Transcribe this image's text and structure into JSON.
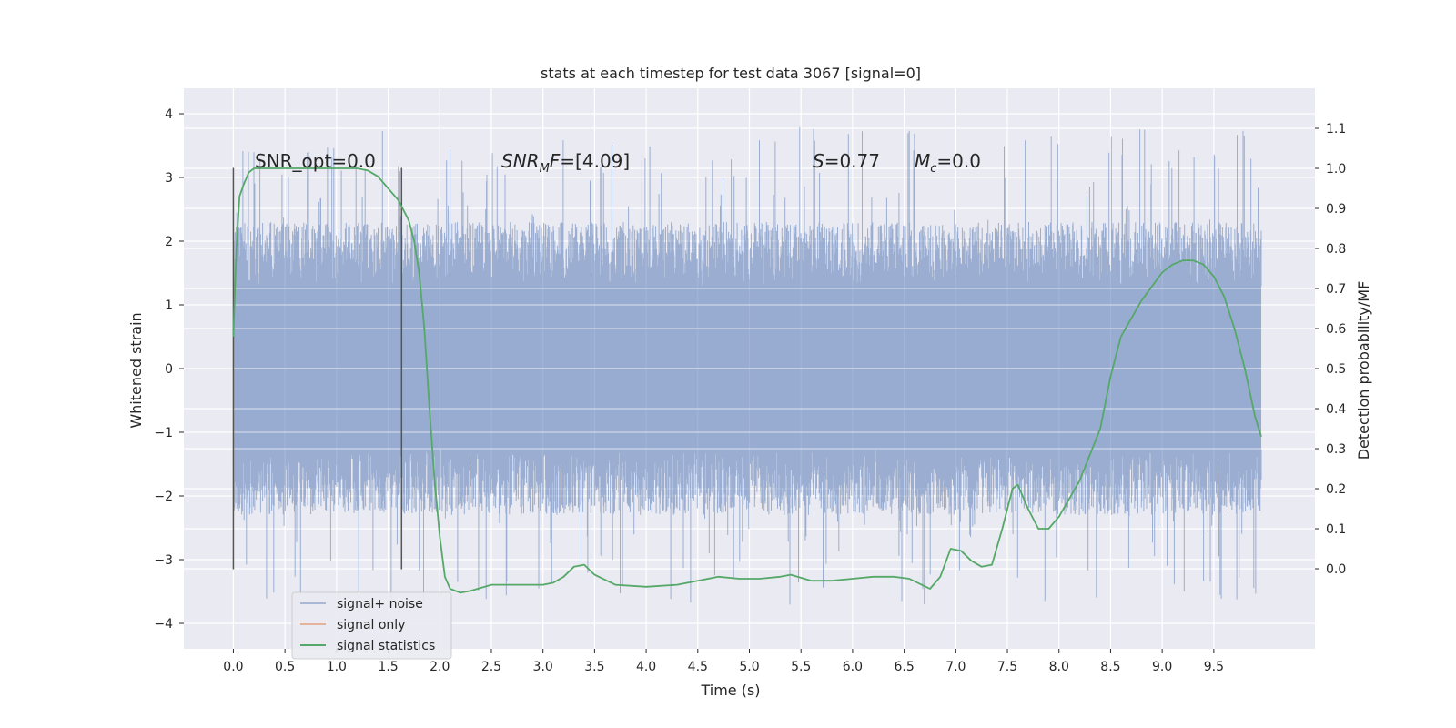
{
  "chart_data": {
    "type": "line",
    "title": "stats at each timestep for test data 3067 [signal=0]",
    "xlabel": "Time (s)",
    "ylabel_left": "Whitened strain",
    "ylabel_right": "Detection probability/MF",
    "xlim": [
      -0.48,
      10.48
    ],
    "ylim_left": [
      -4.4,
      4.4
    ],
    "ylim_right": [
      -0.2,
      1.2
    ],
    "x_ticks": [
      "0.0",
      "0.5",
      "1.0",
      "1.5",
      "2.0",
      "2.5",
      "3.0",
      "3.5",
      "4.0",
      "4.5",
      "5.0",
      "5.5",
      "6.0",
      "6.5",
      "7.0",
      "7.5",
      "8.0",
      "8.5",
      "9.0",
      "9.5"
    ],
    "y_left_ticks": [
      "4",
      "3",
      "2",
      "1",
      "0",
      "−1",
      "−2",
      "−3",
      "−4"
    ],
    "y_right_ticks": [
      "1.1",
      "1.0",
      "0.9",
      "0.8",
      "0.7",
      "0.6",
      "0.5",
      "0.4",
      "0.3",
      "0.2",
      "0.1",
      "0.0"
    ],
    "grid": true,
    "legend_position": "bottom-left",
    "colors": {
      "noise": "#4c72b0",
      "signal": "#dd8452",
      "stat": "#55a868",
      "background": "#eaeaf2",
      "markers": "#555555"
    },
    "noise": {
      "x_range": [
        0.0,
        9.96
      ],
      "core_band": [
        -1.27,
        1.3
      ],
      "typical_peak_range": [
        -2.3,
        2.3
      ],
      "extreme_range": [
        -4.0,
        4.05
      ]
    },
    "vertical_markers": [
      0.0,
      1.63
    ],
    "vertical_marker_range": [
      -3.15,
      3.15
    ],
    "series": [
      {
        "name": "signal+ noise",
        "axis": "left",
        "color": "#4c72b0"
      },
      {
        "name": "signal only",
        "axis": "left",
        "color": "#dd8452",
        "values": []
      },
      {
        "name": "signal statistics",
        "axis": "right",
        "color": "#55a868",
        "x": [
          0.0,
          0.03,
          0.06,
          0.1,
          0.15,
          0.2,
          0.3,
          0.5,
          0.8,
          1.0,
          1.2,
          1.3,
          1.4,
          1.5,
          1.6,
          1.7,
          1.75,
          1.8,
          1.85,
          1.9,
          1.95,
          2.0,
          2.05,
          2.1,
          2.2,
          2.3,
          2.5,
          2.8,
          3.0,
          3.1,
          3.2,
          3.3,
          3.4,
          3.5,
          3.7,
          4.0,
          4.3,
          4.5,
          4.7,
          4.9,
          5.1,
          5.3,
          5.4,
          5.6,
          5.8,
          6.0,
          6.2,
          6.4,
          6.55,
          6.75,
          6.85,
          6.95,
          7.05,
          7.15,
          7.25,
          7.35,
          7.45,
          7.55,
          7.6,
          7.7,
          7.8,
          7.9,
          8.0,
          8.2,
          8.4,
          8.5,
          8.6,
          8.8,
          9.0,
          9.1,
          9.2,
          9.3,
          9.4,
          9.5,
          9.6,
          9.7,
          9.8,
          9.9,
          9.96
        ],
        "values": [
          0.58,
          0.8,
          0.93,
          0.96,
          0.99,
          1.0,
          1.0,
          1.0,
          1.0,
          1.0,
          1.0,
          0.995,
          0.98,
          0.95,
          0.92,
          0.87,
          0.82,
          0.74,
          0.6,
          0.4,
          0.22,
          0.08,
          -0.02,
          -0.05,
          -0.06,
          -0.055,
          -0.04,
          -0.04,
          -0.04,
          -0.035,
          -0.02,
          0.005,
          0.01,
          -0.015,
          -0.04,
          -0.045,
          -0.04,
          -0.03,
          -0.02,
          -0.025,
          -0.025,
          -0.02,
          -0.015,
          -0.03,
          -0.03,
          -0.025,
          -0.02,
          -0.02,
          -0.025,
          -0.05,
          -0.02,
          0.05,
          0.045,
          0.02,
          0.005,
          0.01,
          0.1,
          0.2,
          0.21,
          0.15,
          0.1,
          0.1,
          0.13,
          0.22,
          0.35,
          0.48,
          0.58,
          0.67,
          0.74,
          0.76,
          0.77,
          0.77,
          0.76,
          0.73,
          0.68,
          0.6,
          0.5,
          0.38,
          0.33
        ]
      }
    ],
    "annotations": [
      {
        "key": "snr_opt",
        "text": "SNR_opt=0.0"
      },
      {
        "key": "snr_mf",
        "italic": "SNR",
        "sub": "M",
        "rest_italic": "F",
        "plain": "=[4.09]"
      },
      {
        "key": "s",
        "italic": "S",
        "plain": "=0.77"
      },
      {
        "key": "mc",
        "italic": "M",
        "sub": "c",
        "plain": "=0.0"
      }
    ]
  }
}
